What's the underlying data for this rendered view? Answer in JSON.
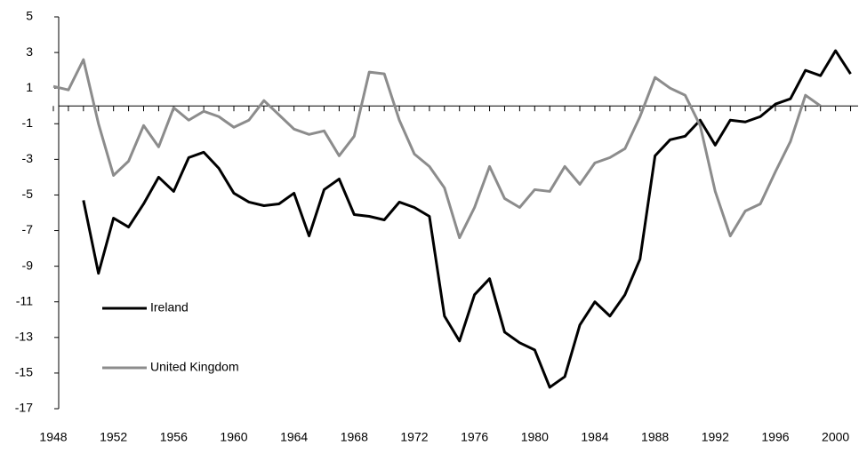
{
  "chart_data": {
    "type": "line",
    "x": [
      1948,
      1949,
      1950,
      1951,
      1952,
      1953,
      1954,
      1955,
      1956,
      1957,
      1958,
      1959,
      1960,
      1961,
      1962,
      1963,
      1964,
      1965,
      1966,
      1967,
      1968,
      1969,
      1970,
      1971,
      1972,
      1973,
      1974,
      1975,
      1976,
      1977,
      1978,
      1979,
      1980,
      1981,
      1982,
      1983,
      1984,
      1985,
      1986,
      1987,
      1988,
      1989,
      1990,
      1991,
      1992,
      1993,
      1994,
      1995,
      1996,
      1997,
      1998,
      1999,
      2000,
      2001
    ],
    "series": [
      {
        "name": "Ireland",
        "color": "#000000",
        "values": [
          null,
          null,
          -5.3,
          -9.4,
          -6.3,
          -6.8,
          -5.5,
          -4.0,
          -4.8,
          -2.9,
          -2.6,
          -3.5,
          -4.9,
          -5.4,
          -5.6,
          -5.5,
          -4.9,
          -7.3,
          -4.7,
          -4.1,
          -6.1,
          -6.2,
          -6.4,
          -5.4,
          -5.7,
          -6.2,
          -11.8,
          -13.2,
          -10.6,
          -9.7,
          -12.7,
          -13.3,
          -13.7,
          -15.8,
          -15.2,
          -12.3,
          -11.0,
          -11.8,
          -10.6,
          -8.6,
          -2.8,
          -1.9,
          -1.7,
          -0.8,
          -2.2,
          -0.8,
          -0.9,
          -0.6,
          0.1,
          0.4,
          2.0,
          1.7,
          3.1,
          1.8
        ]
      },
      {
        "name": "United Kingdom",
        "color": "#8c8c8c",
        "values": [
          1.1,
          0.9,
          2.6,
          -1.0,
          -3.9,
          -3.1,
          -1.1,
          -2.3,
          -0.1,
          -0.8,
          -0.3,
          -0.6,
          -1.2,
          -0.8,
          0.3,
          -0.5,
          -1.3,
          -1.6,
          -1.4,
          -2.8,
          -1.7,
          1.9,
          1.8,
          -0.8,
          -2.7,
          -3.4,
          -4.6,
          -7.4,
          -5.7,
          -3.4,
          -5.2,
          -5.7,
          -4.7,
          -4.8,
          -3.4,
          -4.4,
          -3.2,
          -2.9,
          -2.4,
          -0.6,
          1.6,
          1.0,
          0.6,
          -1.1,
          -4.8,
          -7.3,
          -5.9,
          -5.5,
          -3.7,
          -2.0,
          0.6,
          0.0,
          null,
          null
        ]
      }
    ],
    "xlim": [
      1948,
      2001.5
    ],
    "xticks": [
      1948,
      1952,
      1956,
      1960,
      1964,
      1968,
      1972,
      1976,
      1980,
      1984,
      1988,
      1992,
      1996,
      2000
    ],
    "ylim": [
      -17,
      5
    ],
    "yticks": [
      -17,
      -15,
      -13,
      -11,
      -9,
      -7,
      -5,
      -3,
      -1,
      1,
      3,
      5
    ],
    "legend": "lower left"
  }
}
